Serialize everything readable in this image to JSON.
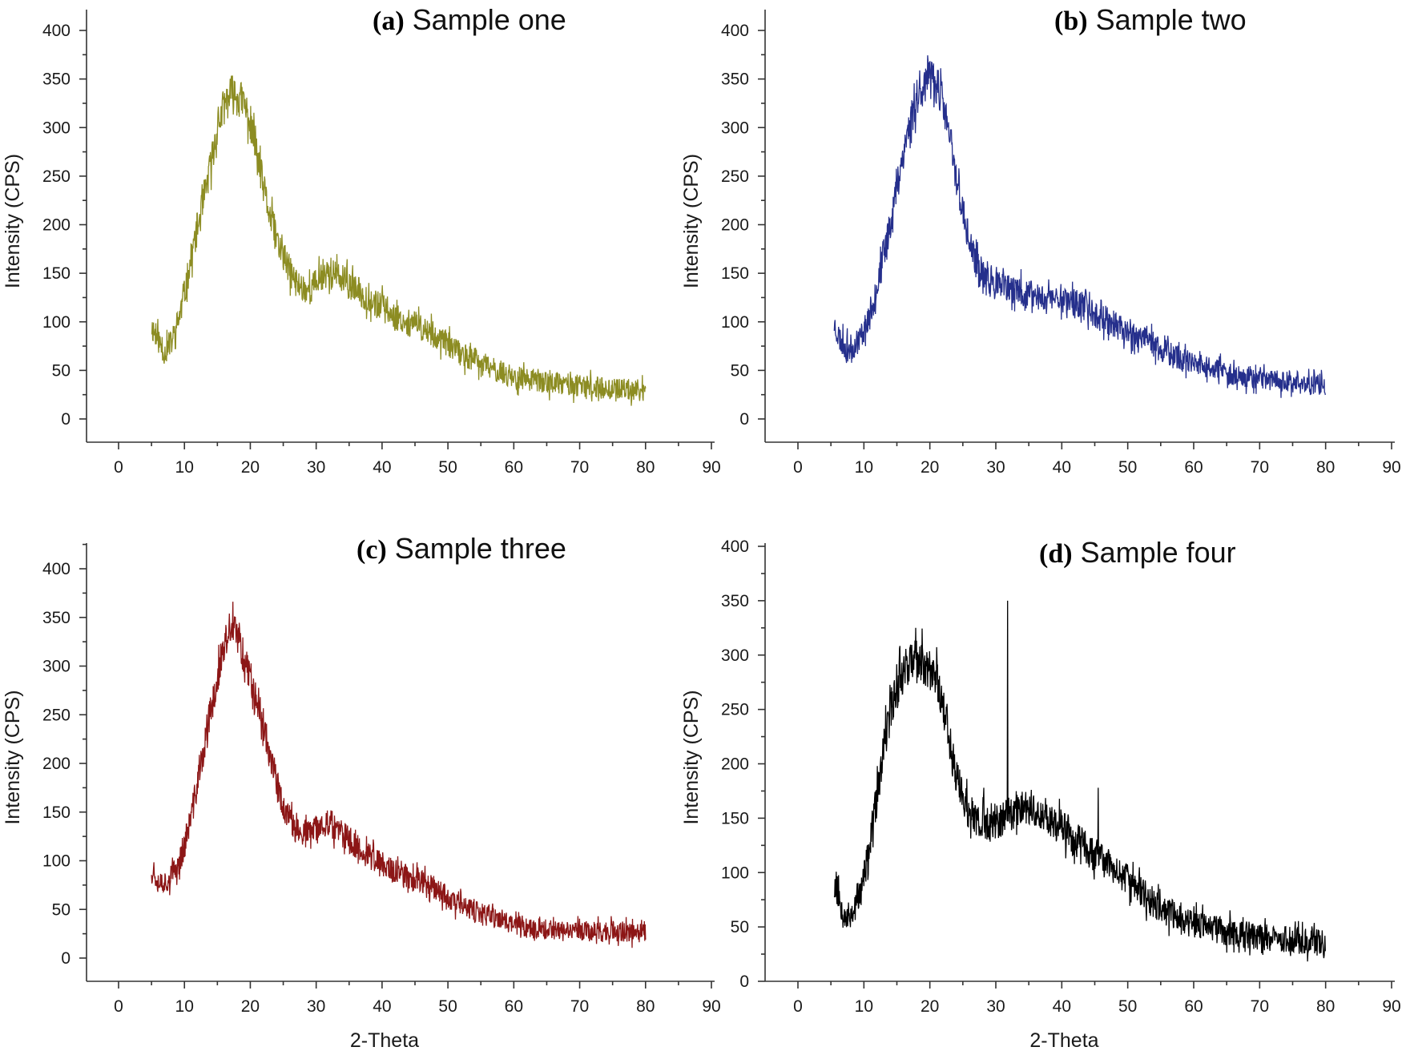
{
  "chart_data": [
    {
      "panel": "a",
      "type": "line",
      "title_tag": "(a)",
      "title": "Sample one",
      "xlabel": "",
      "ylabel": "Intensity (CPS)",
      "xlim": [
        -5,
        90
      ],
      "ylim": [
        -25,
        425
      ],
      "xticks": [
        0,
        10,
        20,
        30,
        40,
        50,
        60,
        70,
        80,
        90
      ],
      "yticks": [
        0,
        50,
        100,
        150,
        200,
        250,
        300,
        350,
        400
      ],
      "color": "#8c8c22",
      "noise": 16,
      "seed": 11,
      "x_range": [
        5,
        80
      ],
      "series": [
        {
          "x": [
            5,
            6,
            7,
            8,
            9,
            10,
            11,
            12,
            13,
            14,
            15,
            16,
            17,
            18,
            19,
            20,
            21,
            22,
            23,
            24,
            25,
            26,
            27,
            28,
            29,
            30,
            31,
            32,
            33,
            35,
            37,
            40,
            43,
            46,
            48,
            50,
            52,
            55,
            58,
            60,
            63,
            66,
            70,
            75,
            80
          ],
          "y": [
            95,
            82,
            68,
            78,
            100,
            128,
            165,
            198,
            225,
            262,
            300,
            322,
            335,
            332,
            325,
            305,
            272,
            238,
            208,
            185,
            168,
            152,
            140,
            135,
            133,
            140,
            150,
            152,
            148,
            138,
            128,
            115,
            102,
            94,
            86,
            77,
            67,
            57,
            48,
            43,
            40,
            37,
            34,
            31,
            29
          ]
        }
      ]
    },
    {
      "panel": "b",
      "type": "line",
      "title_tag": "(b)",
      "title": "Sample two",
      "xlabel": "",
      "ylabel": "Intensity (CPS)",
      "xlim": [
        -5,
        90
      ],
      "ylim": [
        -25,
        425
      ],
      "xticks": [
        0,
        10,
        20,
        30,
        40,
        50,
        60,
        70,
        80,
        90
      ],
      "yticks": [
        0,
        50,
        100,
        150,
        200,
        250,
        300,
        350,
        400
      ],
      "color": "#252f8c",
      "noise": 16,
      "seed": 23,
      "x_range": [
        5.5,
        80
      ],
      "series": [
        {
          "x": [
            5.5,
            6.5,
            7.5,
            8.5,
            9.5,
            10.5,
            11.5,
            12.5,
            13.5,
            14.5,
            15.5,
            16.5,
            17.5,
            18.5,
            19.5,
            20.5,
            21.5,
            22.5,
            23.5,
            24.5,
            25.5,
            26.5,
            27.5,
            28.5,
            30,
            32,
            35,
            38,
            40,
            42,
            44,
            46,
            48,
            50,
            52,
            55,
            58,
            60,
            63,
            66,
            70,
            75,
            80
          ],
          "y": [
            98,
            80,
            72,
            75,
            85,
            100,
            122,
            152,
            185,
            220,
            258,
            292,
            318,
            338,
            348,
            350,
            338,
            308,
            268,
            232,
            195,
            170,
            152,
            143,
            138,
            133,
            128,
            125,
            125,
            120,
            113,
            105,
            97,
            90,
            83,
            72,
            62,
            55,
            50,
            46,
            42,
            38,
            34
          ]
        }
      ]
    },
    {
      "panel": "c",
      "type": "line",
      "title_tag": "(c)",
      "title": "Sample three",
      "xlabel": "2-Theta",
      "ylabel": "Intensity (CPS)",
      "xlim": [
        -5,
        90
      ],
      "ylim": [
        -25,
        425
      ],
      "xticks": [
        0,
        10,
        20,
        30,
        40,
        50,
        60,
        70,
        80,
        90
      ],
      "yticks": [
        0,
        50,
        100,
        150,
        200,
        250,
        300,
        350,
        400
      ],
      "color": "#8c1616",
      "noise": 15,
      "seed": 37,
      "x_range": [
        5,
        80
      ],
      "series": [
        {
          "x": [
            5,
            6,
            7,
            8,
            9,
            10,
            11,
            12,
            13,
            14,
            15,
            16,
            17,
            18,
            19,
            20,
            21,
            22,
            23,
            24,
            25,
            26,
            27,
            28,
            29,
            30,
            31,
            32,
            33,
            35,
            37,
            40,
            43,
            46,
            48,
            50,
            52,
            55,
            58,
            60,
            63,
            66,
            70,
            75,
            80
          ],
          "y": [
            92,
            80,
            78,
            84,
            95,
            115,
            145,
            180,
            215,
            250,
            288,
            318,
            340,
            332,
            310,
            290,
            268,
            240,
            210,
            180,
            155,
            140,
            132,
            128,
            128,
            132,
            138,
            140,
            132,
            122,
            110,
            95,
            85,
            80,
            73,
            62,
            53,
            45,
            40,
            35,
            31,
            29,
            28,
            27,
            25
          ]
        }
      ]
    },
    {
      "panel": "d",
      "type": "line",
      "title_tag": "(d)",
      "title": "Sample four",
      "xlabel": "2-Theta",
      "ylabel": "Intensity (CPS)",
      "xlim": [
        -5,
        90
      ],
      "ylim": [
        0,
        400
      ],
      "xticks": [
        0,
        10,
        20,
        30,
        40,
        50,
        60,
        70,
        80,
        90
      ],
      "yticks": [
        0,
        50,
        100,
        150,
        200,
        250,
        300,
        350,
        400
      ],
      "color": "#000000",
      "noise": 17,
      "seed": 53,
      "x_range": [
        5.5,
        80
      ],
      "spikes": [
        [
          31.8,
          350
        ],
        [
          45.5,
          178
        ],
        [
          28.2,
          178
        ]
      ],
      "series": [
        {
          "x": [
            5.5,
            6.5,
            7.5,
            8.5,
            9.5,
            10.5,
            11.5,
            12.5,
            13.5,
            14.5,
            15.5,
            16.5,
            17.5,
            18.5,
            19.5,
            20.5,
            21.5,
            22.5,
            23.5,
            24.5,
            25.5,
            26.5,
            27.5,
            28.5,
            30,
            32,
            34,
            36,
            38,
            40,
            42,
            44,
            46,
            48,
            50,
            52,
            55,
            58,
            60,
            63,
            66,
            70,
            75,
            80
          ],
          "y": [
            90,
            72,
            58,
            65,
            82,
            110,
            150,
            190,
            232,
            262,
            280,
            292,
            295,
            292,
            290,
            285,
            270,
            240,
            205,
            178,
            160,
            152,
            145,
            142,
            145,
            155,
            160,
            158,
            150,
            142,
            132,
            120,
            112,
            103,
            93,
            82,
            67,
            58,
            53,
            48,
            45,
            41,
            38,
            35
          ]
        }
      ]
    }
  ]
}
